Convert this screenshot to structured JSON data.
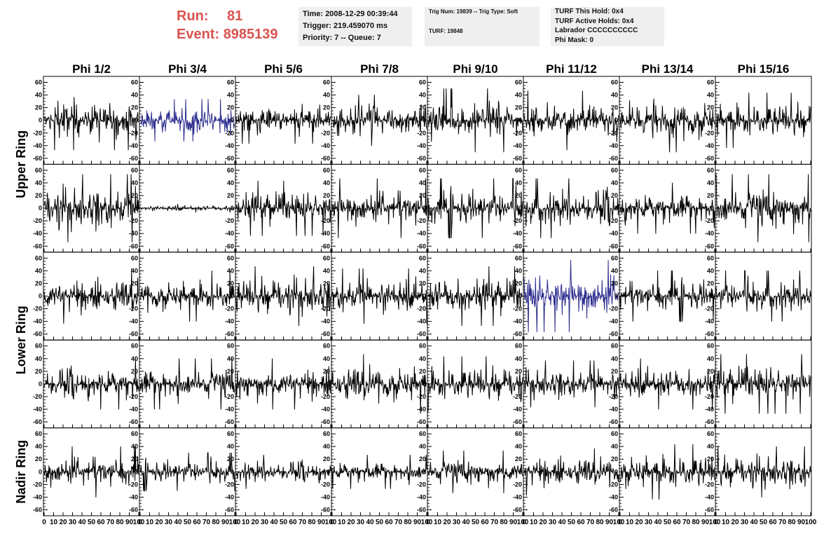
{
  "run_panel": {
    "run_label": "Run:",
    "run_value": "81",
    "event_label": "Event:",
    "event_value": "8985139"
  },
  "info_time": {
    "time": "Time: 2008-12-29 00:39:44",
    "trigger": "Trigger: 219.459070 ms",
    "priority": "Priority: 7 -- Queue: 7"
  },
  "info_trig": {
    "trig": "Trig Num: 19839 -- Trig Type: Soft",
    "turf": "TURF: 19848"
  },
  "info_turf": {
    "this_hold": "TURF This Hold: 0x4",
    "active_holds": "TURF Active Holds: 0x4",
    "labrador": "Labrador CCCCCCCCCC",
    "phi_mask": "Phi Mask: 0"
  },
  "chart_data": {
    "type": "line",
    "columns": [
      "Phi 1/2",
      "Phi 3/4",
      "Phi 5/6",
      "Phi 7/8",
      "Phi 9/10",
      "Phi 11/12",
      "Phi 13/14",
      "Phi 15/16"
    ],
    "ring_labels": [
      {
        "name": "Upper Ring",
        "rows": [
          0,
          1
        ]
      },
      {
        "name": "Lower Ring",
        "rows": [
          2,
          3
        ]
      },
      {
        "name": "Nadir Ring",
        "rows": [
          4
        ]
      }
    ],
    "rows": 5,
    "xlim": [
      0,
      100
    ],
    "ylim": [
      -65,
      65
    ],
    "x_ticks": [
      0,
      10,
      20,
      30,
      40,
      50,
      60,
      70,
      80,
      90,
      100
    ],
    "x_tick_labels": [
      "0",
      "10",
      "20",
      "30",
      "40",
      "50",
      "60",
      "70",
      "80",
      "90",
      "100"
    ],
    "y_ticks": [
      -60,
      -40,
      -20,
      0,
      20,
      40,
      60
    ],
    "y_tick_labels": [
      "-60",
      "-40",
      "-20",
      "0",
      "20",
      "40",
      "60"
    ],
    "colors": {
      "default_trace": "#000000",
      "triggered_trace": "#2e2e8f"
    },
    "panels": [
      {
        "row": 0,
        "col": 0,
        "amp": 14,
        "color": "default"
      },
      {
        "row": 0,
        "col": 1,
        "amp": 10,
        "color": "triggered"
      },
      {
        "row": 0,
        "col": 2,
        "amp": 11,
        "color": "default"
      },
      {
        "row": 0,
        "col": 3,
        "amp": 12,
        "color": "default"
      },
      {
        "row": 0,
        "col": 4,
        "amp": 15,
        "color": "default"
      },
      {
        "row": 0,
        "col": 5,
        "amp": 14,
        "color": "default"
      },
      {
        "row": 0,
        "col": 6,
        "amp": 15,
        "color": "default"
      },
      {
        "row": 0,
        "col": 7,
        "amp": 13,
        "color": "default"
      },
      {
        "row": 1,
        "col": 0,
        "amp": 16,
        "color": "default"
      },
      {
        "row": 1,
        "col": 1,
        "amp": 2,
        "color": "default"
      },
      {
        "row": 1,
        "col": 2,
        "amp": 13,
        "color": "default"
      },
      {
        "row": 1,
        "col": 3,
        "amp": 14,
        "color": "default"
      },
      {
        "row": 1,
        "col": 4,
        "amp": 14,
        "color": "default"
      },
      {
        "row": 1,
        "col": 5,
        "amp": 14,
        "color": "default"
      },
      {
        "row": 1,
        "col": 6,
        "amp": 12,
        "color": "default"
      },
      {
        "row": 1,
        "col": 7,
        "amp": 16,
        "color": "default"
      },
      {
        "row": 2,
        "col": 0,
        "amp": 13,
        "color": "default"
      },
      {
        "row": 2,
        "col": 1,
        "amp": 12,
        "color": "default"
      },
      {
        "row": 2,
        "col": 2,
        "amp": 14,
        "color": "default"
      },
      {
        "row": 2,
        "col": 3,
        "amp": 13,
        "color": "default"
      },
      {
        "row": 2,
        "col": 4,
        "amp": 14,
        "color": "default"
      },
      {
        "row": 2,
        "col": 5,
        "amp": 17,
        "color": "triggered"
      },
      {
        "row": 2,
        "col": 6,
        "amp": 12,
        "color": "default"
      },
      {
        "row": 2,
        "col": 7,
        "amp": 12,
        "color": "default"
      },
      {
        "row": 3,
        "col": 0,
        "amp": 12,
        "color": "default"
      },
      {
        "row": 3,
        "col": 1,
        "amp": 12,
        "color": "default"
      },
      {
        "row": 3,
        "col": 2,
        "amp": 12,
        "color": "default"
      },
      {
        "row": 3,
        "col": 3,
        "amp": 14,
        "color": "default"
      },
      {
        "row": 3,
        "col": 4,
        "amp": 13,
        "color": "default"
      },
      {
        "row": 3,
        "col": 5,
        "amp": 11,
        "color": "default"
      },
      {
        "row": 3,
        "col": 6,
        "amp": 12,
        "color": "default"
      },
      {
        "row": 3,
        "col": 7,
        "amp": 14,
        "color": "default"
      },
      {
        "row": 4,
        "col": 0,
        "amp": 12,
        "color": "default"
      },
      {
        "row": 4,
        "col": 1,
        "amp": 9,
        "color": "default"
      },
      {
        "row": 4,
        "col": 2,
        "amp": 8,
        "color": "default"
      },
      {
        "row": 4,
        "col": 3,
        "amp": 8,
        "color": "default"
      },
      {
        "row": 4,
        "col": 4,
        "amp": 10,
        "color": "default"
      },
      {
        "row": 4,
        "col": 5,
        "amp": 11,
        "color": "default"
      },
      {
        "row": 4,
        "col": 6,
        "amp": 13,
        "color": "default"
      },
      {
        "row": 4,
        "col": 7,
        "amp": 12,
        "color": "default"
      }
    ]
  }
}
